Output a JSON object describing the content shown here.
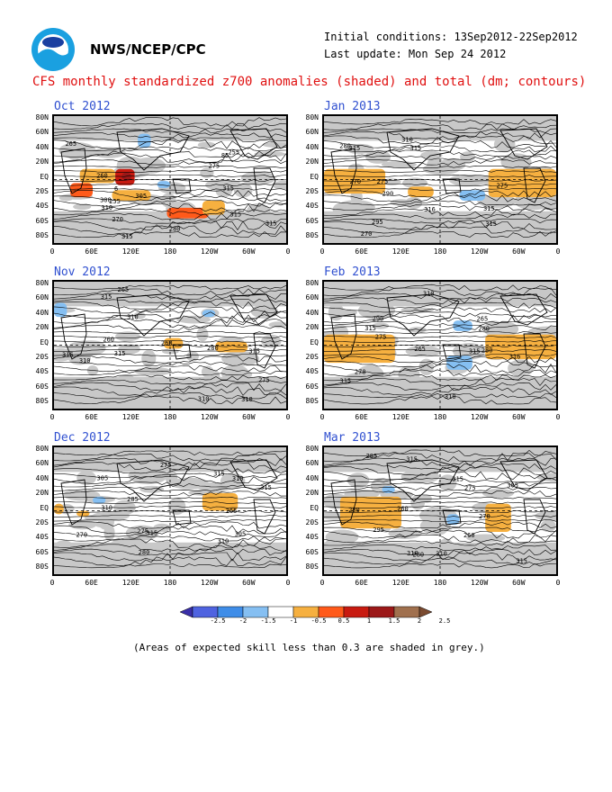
{
  "header": {
    "org": "NWS/NCEP/CPC",
    "initial_conditions": "Initial conditions: 13Sep2012-22Sep2012",
    "last_update": "Last update: Mon Sep 24 2012",
    "logo_icon": "noaa-logo-icon"
  },
  "title": "CFS monthly standardized z700 anomalies (shaded) and total (dm; contours)",
  "footnote": "(Areas of expected skill less than 0.3 are shaded in grey.)",
  "axes": {
    "lat_ticks": [
      "80N",
      "60N",
      "40N",
      "20N",
      "EQ",
      "20S",
      "40S",
      "60S",
      "80S"
    ],
    "lon_ticks": [
      "0",
      "60E",
      "120E",
      "180",
      "120W",
      "60W",
      "0"
    ]
  },
  "panels": [
    {
      "month": "Oct 2012",
      "contours": [
        "280",
        "265",
        "270",
        "310",
        "315",
        "315",
        "315",
        "315",
        "305",
        "300",
        "255",
        "255",
        "260",
        "275",
        "85",
        "6"
      ]
    },
    {
      "month": "Nov 2012",
      "contours": [
        "275",
        "280",
        "310",
        "315",
        "315",
        "310",
        "315",
        "310",
        "310",
        "315",
        "265",
        "260",
        "260"
      ]
    },
    {
      "month": "Dec 2012",
      "contours": [
        "275",
        "280",
        "275",
        "285",
        "315",
        "305",
        "310",
        "315",
        "315",
        "310",
        "310",
        "305",
        "265",
        "270"
      ]
    },
    {
      "month": "Jan 2013",
      "contours": [
        "275",
        "280",
        "315",
        "315",
        "316",
        "310",
        "315",
        "315",
        "290",
        "295",
        "275",
        "270",
        "270"
      ]
    },
    {
      "month": "Feb 2013",
      "contours": [
        "275",
        "280",
        "280",
        "310",
        "315",
        "316",
        "315",
        "315",
        "310",
        "290",
        "265",
        "270",
        "265"
      ]
    },
    {
      "month": "Mar 2013",
      "contours": [
        "275",
        "280",
        "260",
        "310",
        "315",
        "315",
        "315",
        "310",
        "305",
        "295",
        "285",
        "280",
        "270",
        "260"
      ]
    }
  ],
  "colorbar": {
    "levels": [
      "-2.5",
      "-2",
      "-1.5",
      "-1",
      "-0.5",
      "0.5",
      "1",
      "1.5",
      "2",
      "2.5"
    ],
    "colors": [
      "#3a2fa8",
      "#4f63e0",
      "#3f8de8",
      "#85bff2",
      "#ffffff",
      "#f6b040",
      "#ff5a1a",
      "#c81a10",
      "#9c1818",
      "#a0704e",
      "#7a4a30"
    ]
  },
  "chart_data": {
    "type": "heatmap",
    "variable": "standardized z700 anomalies (shaded) and total (dm; contours)",
    "panels": [
      "Oct 2012",
      "Nov 2012",
      "Dec 2012",
      "Jan 2013",
      "Feb 2013",
      "Mar 2013"
    ],
    "anomaly_levels": [
      -2.5,
      -2,
      -1.5,
      -1,
      -0.5,
      0.5,
      1,
      1.5,
      2,
      2.5
    ],
    "grey_shading": "expected skill less than 0.3",
    "anomalies": {
      "Oct 2012": [
        {
          "lat": [
            -5,
            15
          ],
          "lon": [
            40,
            95
          ],
          "level": 0.5
        },
        {
          "lat": [
            -8,
            15
          ],
          "lon": [
            95,
            125
          ],
          "level": 1.5
        },
        {
          "lat": [
            -2,
            10
          ],
          "lon": [
            105,
            120
          ],
          "level": 2
        },
        {
          "lat": [
            -25,
            -5
          ],
          "lon": [
            25,
            60
          ],
          "level": 1
        },
        {
          "lat": [
            -30,
            -15
          ],
          "lon": [
            90,
            150
          ],
          "level": 0.5
        },
        {
          "lat": [
            -55,
            -40
          ],
          "lon": [
            175,
            240
          ],
          "level": 1
        },
        {
          "lat": [
            -50,
            -30
          ],
          "lon": [
            230,
            265
          ],
          "level": 0.5
        },
        {
          "lat": [
            45,
            65
          ],
          "lon": [
            130,
            150
          ],
          "level": -0.5
        },
        {
          "lat": [
            -12,
            -2
          ],
          "lon": [
            160,
            180
          ],
          "level": -0.5
        }
      ],
      "Nov 2012": [
        {
          "lat": [
            -10,
            5
          ],
          "lon": [
            250,
            300
          ],
          "level": 0.5
        },
        {
          "lat": [
            -5,
            10
          ],
          "lon": [
            170,
            200
          ],
          "level": 0.5
        },
        {
          "lat": [
            40,
            60
          ],
          "lon": [
            0,
            20
          ],
          "level": -0.5
        },
        {
          "lat": [
            40,
            50
          ],
          "lon": [
            230,
            250
          ],
          "level": -0.5
        }
      ],
      "Dec 2012": [
        {
          "lat": [
            0,
            25
          ],
          "lon": [
            230,
            285
          ],
          "level": 0.5
        },
        {
          "lat": [
            -5,
            10
          ],
          "lon": [
            0,
            15
          ],
          "level": 0.5
        },
        {
          "lat": [
            -8,
            0
          ],
          "lon": [
            35,
            55
          ],
          "level": 0.5
        },
        {
          "lat": [
            10,
            20
          ],
          "lon": [
            60,
            80
          ],
          "level": -0.5
        }
      ],
      "Jan 2013": [
        {
          "lat": [
            -20,
            15
          ],
          "lon": [
            0,
            95
          ],
          "level": 0.5
        },
        {
          "lat": [
            -25,
            15
          ],
          "lon": [
            255,
            360
          ],
          "level": 0.5
        },
        {
          "lat": [
            -25,
            -10
          ],
          "lon": [
            130,
            170
          ],
          "level": 0.5
        },
        {
          "lat": [
            -30,
            -15
          ],
          "lon": [
            210,
            250
          ],
          "level": -0.5
        }
      ],
      "Feb 2013": [
        {
          "lat": [
            -25,
            15
          ],
          "lon": [
            0,
            110
          ],
          "level": 0.5
        },
        {
          "lat": [
            -20,
            15
          ],
          "lon": [
            250,
            360
          ],
          "level": 0.5
        },
        {
          "lat": [
            -35,
            -15
          ],
          "lon": [
            190,
            230
          ],
          "level": -0.5
        },
        {
          "lat": [
            20,
            35
          ],
          "lon": [
            200,
            230
          ],
          "level": -0.5
        }
      ],
      "Mar 2013": [
        {
          "lat": [
            -25,
            20
          ],
          "lon": [
            25,
            120
          ],
          "level": 0.5
        },
        {
          "lat": [
            -30,
            10
          ],
          "lon": [
            250,
            290
          ],
          "level": 0.5
        },
        {
          "lat": [
            25,
            35
          ],
          "lon": [
            90,
            110
          ],
          "level": -0.5
        },
        {
          "lat": [
            -20,
            -5
          ],
          "lon": [
            190,
            210
          ],
          "level": -0.5
        }
      ]
    }
  }
}
